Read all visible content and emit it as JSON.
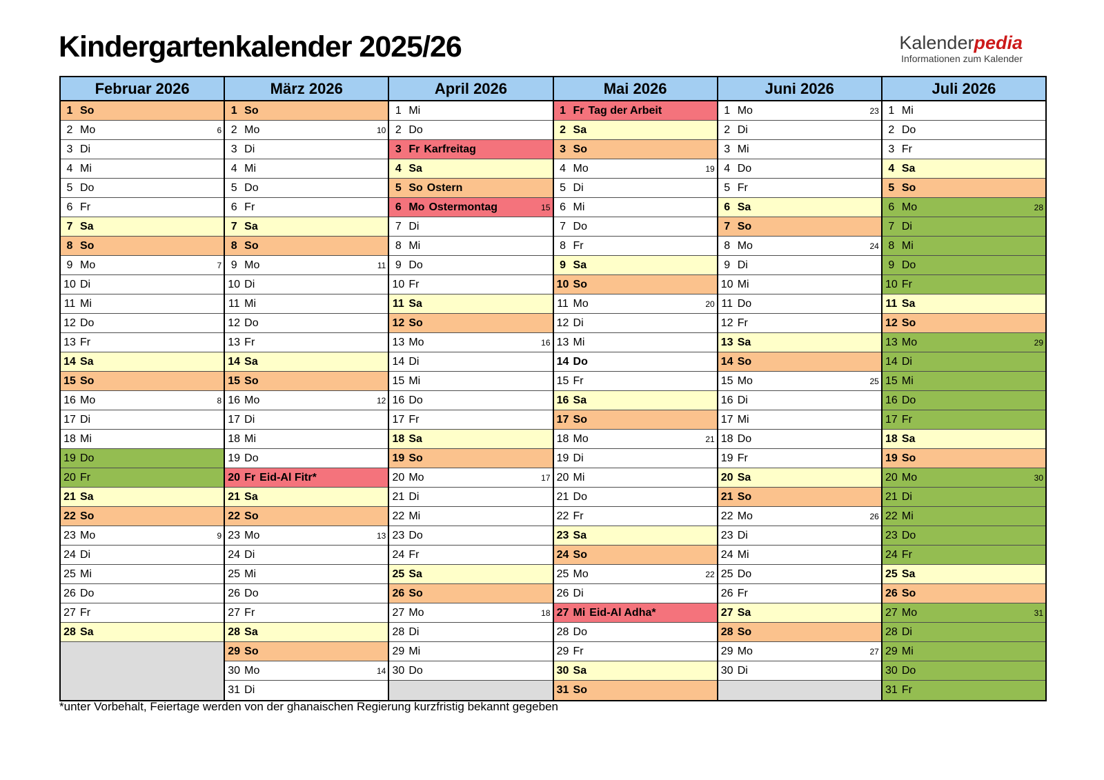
{
  "title": "Kindergartenkalender 2025/26",
  "logo": {
    "name_black": "Kalender",
    "name_red": "pedia",
    "tagline": "Informationen zum Kalender"
  },
  "footnote": "*unter Vorbehalt, Feiertage werden von der ghanaischen Regierung kurzfristig bekannt gegeben",
  "colors": {
    "header_blue": "#A3CEF2",
    "saturday_yellow": "#FFFFC9",
    "sunday_orange": "#FBC28D",
    "holiday_red": "#F4737C",
    "vacation_green": "#94BD51",
    "empty_gray": "#DCDCDC",
    "logo_red": "#CC1A1A"
  },
  "months": [
    {
      "name": "Februar 2026",
      "empty_rows": 3,
      "days": [
        {
          "d": 1,
          "w": "So",
          "t": "so"
        },
        {
          "d": 2,
          "w": "Mo",
          "kw": 6
        },
        {
          "d": 3,
          "w": "Di"
        },
        {
          "d": 4,
          "w": "Mi"
        },
        {
          "d": 5,
          "w": "Do"
        },
        {
          "d": 6,
          "w": "Fr"
        },
        {
          "d": 7,
          "w": "Sa",
          "t": "sa"
        },
        {
          "d": 8,
          "w": "So",
          "t": "so"
        },
        {
          "d": 9,
          "w": "Mo",
          "kw": 7
        },
        {
          "d": 10,
          "w": "Di"
        },
        {
          "d": 11,
          "w": "Mi"
        },
        {
          "d": 12,
          "w": "Do"
        },
        {
          "d": 13,
          "w": "Fr"
        },
        {
          "d": 14,
          "w": "Sa",
          "t": "sa"
        },
        {
          "d": 15,
          "w": "So",
          "t": "so"
        },
        {
          "d": 16,
          "w": "Mo",
          "kw": 8
        },
        {
          "d": 17,
          "w": "Di"
        },
        {
          "d": 18,
          "w": "Mi"
        },
        {
          "d": 19,
          "w": "Do",
          "t": "grn"
        },
        {
          "d": 20,
          "w": "Fr",
          "t": "grn"
        },
        {
          "d": 21,
          "w": "Sa",
          "t": "sa"
        },
        {
          "d": 22,
          "w": "So",
          "t": "so"
        },
        {
          "d": 23,
          "w": "Mo",
          "kw": 9
        },
        {
          "d": 24,
          "w": "Di"
        },
        {
          "d": 25,
          "w": "Mi"
        },
        {
          "d": 26,
          "w": "Do"
        },
        {
          "d": 27,
          "w": "Fr"
        },
        {
          "d": 28,
          "w": "Sa",
          "t": "sa"
        }
      ]
    },
    {
      "name": "März 2026",
      "empty_rows": 0,
      "days": [
        {
          "d": 1,
          "w": "So",
          "t": "so"
        },
        {
          "d": 2,
          "w": "Mo",
          "kw": 10
        },
        {
          "d": 3,
          "w": "Di"
        },
        {
          "d": 4,
          "w": "Mi"
        },
        {
          "d": 5,
          "w": "Do"
        },
        {
          "d": 6,
          "w": "Fr"
        },
        {
          "d": 7,
          "w": "Sa",
          "t": "sa"
        },
        {
          "d": 8,
          "w": "So",
          "t": "so"
        },
        {
          "d": 9,
          "w": "Mo",
          "kw": 11
        },
        {
          "d": 10,
          "w": "Di"
        },
        {
          "d": 11,
          "w": "Mi"
        },
        {
          "d": 12,
          "w": "Do"
        },
        {
          "d": 13,
          "w": "Fr"
        },
        {
          "d": 14,
          "w": "Sa",
          "t": "sa"
        },
        {
          "d": 15,
          "w": "So",
          "t": "so"
        },
        {
          "d": 16,
          "w": "Mo",
          "kw": 12
        },
        {
          "d": 17,
          "w": "Di"
        },
        {
          "d": 18,
          "w": "Mi"
        },
        {
          "d": 19,
          "w": "Do"
        },
        {
          "d": 20,
          "w": "Fr",
          "t": "hol",
          "l": "Eid-Al Fitr*"
        },
        {
          "d": 21,
          "w": "Sa",
          "t": "sa"
        },
        {
          "d": 22,
          "w": "So",
          "t": "so"
        },
        {
          "d": 23,
          "w": "Mo",
          "kw": 13
        },
        {
          "d": 24,
          "w": "Di"
        },
        {
          "d": 25,
          "w": "Mi"
        },
        {
          "d": 26,
          "w": "Do"
        },
        {
          "d": 27,
          "w": "Fr"
        },
        {
          "d": 28,
          "w": "Sa",
          "t": "sa"
        },
        {
          "d": 29,
          "w": "So",
          "t": "so"
        },
        {
          "d": 30,
          "w": "Mo",
          "kw": 14
        },
        {
          "d": 31,
          "w": "Di"
        }
      ]
    },
    {
      "name": "April 2026",
      "empty_rows": 1,
      "days": [
        {
          "d": 1,
          "w": "Mi"
        },
        {
          "d": 2,
          "w": "Do"
        },
        {
          "d": 3,
          "w": "Fr",
          "t": "hol",
          "l": "Karfreitag"
        },
        {
          "d": 4,
          "w": "Sa",
          "t": "sa"
        },
        {
          "d": 5,
          "w": "So",
          "t": "so",
          "l": "Ostern"
        },
        {
          "d": 6,
          "w": "Mo",
          "t": "hol",
          "l": "Ostermontag",
          "kw": 15
        },
        {
          "d": 7,
          "w": "Di"
        },
        {
          "d": 8,
          "w": "Mi"
        },
        {
          "d": 9,
          "w": "Do"
        },
        {
          "d": 10,
          "w": "Fr"
        },
        {
          "d": 11,
          "w": "Sa",
          "t": "sa"
        },
        {
          "d": 12,
          "w": "So",
          "t": "so"
        },
        {
          "d": 13,
          "w": "Mo",
          "kw": 16
        },
        {
          "d": 14,
          "w": "Di"
        },
        {
          "d": 15,
          "w": "Mi"
        },
        {
          "d": 16,
          "w": "Do"
        },
        {
          "d": 17,
          "w": "Fr"
        },
        {
          "d": 18,
          "w": "Sa",
          "t": "sa"
        },
        {
          "d": 19,
          "w": "So",
          "t": "so"
        },
        {
          "d": 20,
          "w": "Mo",
          "kw": 17
        },
        {
          "d": 21,
          "w": "Di"
        },
        {
          "d": 22,
          "w": "Mi"
        },
        {
          "d": 23,
          "w": "Do"
        },
        {
          "d": 24,
          "w": "Fr"
        },
        {
          "d": 25,
          "w": "Sa",
          "t": "sa"
        },
        {
          "d": 26,
          "w": "So",
          "t": "so"
        },
        {
          "d": 27,
          "w": "Mo",
          "kw": 18
        },
        {
          "d": 28,
          "w": "Di"
        },
        {
          "d": 29,
          "w": "Mi"
        },
        {
          "d": 30,
          "w": "Do"
        }
      ]
    },
    {
      "name": "Mai 2026",
      "empty_rows": 0,
      "days": [
        {
          "d": 1,
          "w": "Fr",
          "t": "hol",
          "l": "Tag der Arbeit"
        },
        {
          "d": 2,
          "w": "Sa",
          "t": "sa"
        },
        {
          "d": 3,
          "w": "So",
          "t": "so"
        },
        {
          "d": 4,
          "w": "Mo",
          "kw": 19
        },
        {
          "d": 5,
          "w": "Di"
        },
        {
          "d": 6,
          "w": "Mi"
        },
        {
          "d": 7,
          "w": "Do"
        },
        {
          "d": 8,
          "w": "Fr"
        },
        {
          "d": 9,
          "w": "Sa",
          "t": "sa"
        },
        {
          "d": 10,
          "w": "So",
          "t": "so"
        },
        {
          "d": 11,
          "w": "Mo",
          "kw": 20
        },
        {
          "d": 12,
          "w": "Di"
        },
        {
          "d": 13,
          "w": "Mi"
        },
        {
          "d": 14,
          "w": "Do",
          "b": true
        },
        {
          "d": 15,
          "w": "Fr"
        },
        {
          "d": 16,
          "w": "Sa",
          "t": "sa"
        },
        {
          "d": 17,
          "w": "So",
          "t": "so"
        },
        {
          "d": 18,
          "w": "Mo",
          "kw": 21
        },
        {
          "d": 19,
          "w": "Di"
        },
        {
          "d": 20,
          "w": "Mi"
        },
        {
          "d": 21,
          "w": "Do"
        },
        {
          "d": 22,
          "w": "Fr"
        },
        {
          "d": 23,
          "w": "Sa",
          "t": "sa"
        },
        {
          "d": 24,
          "w": "So",
          "t": "so"
        },
        {
          "d": 25,
          "w": "Mo",
          "kw": 22
        },
        {
          "d": 26,
          "w": "Di"
        },
        {
          "d": 27,
          "w": "Mi",
          "t": "hol",
          "l": "Eid-Al Adha*"
        },
        {
          "d": 28,
          "w": "Do"
        },
        {
          "d": 29,
          "w": "Fr"
        },
        {
          "d": 30,
          "w": "Sa",
          "t": "sa"
        },
        {
          "d": 31,
          "w": "So",
          "t": "so"
        }
      ]
    },
    {
      "name": "Juni 2026",
      "empty_rows": 1,
      "days": [
        {
          "d": 1,
          "w": "Mo",
          "kw": 23
        },
        {
          "d": 2,
          "w": "Di"
        },
        {
          "d": 3,
          "w": "Mi"
        },
        {
          "d": 4,
          "w": "Do"
        },
        {
          "d": 5,
          "w": "Fr"
        },
        {
          "d": 6,
          "w": "Sa",
          "t": "sa"
        },
        {
          "d": 7,
          "w": "So",
          "t": "so"
        },
        {
          "d": 8,
          "w": "Mo",
          "kw": 24
        },
        {
          "d": 9,
          "w": "Di"
        },
        {
          "d": 10,
          "w": "Mi"
        },
        {
          "d": 11,
          "w": "Do"
        },
        {
          "d": 12,
          "w": "Fr"
        },
        {
          "d": 13,
          "w": "Sa",
          "t": "sa"
        },
        {
          "d": 14,
          "w": "So",
          "t": "so"
        },
        {
          "d": 15,
          "w": "Mo",
          "kw": 25
        },
        {
          "d": 16,
          "w": "Di"
        },
        {
          "d": 17,
          "w": "Mi"
        },
        {
          "d": 18,
          "w": "Do"
        },
        {
          "d": 19,
          "w": "Fr"
        },
        {
          "d": 20,
          "w": "Sa",
          "t": "sa"
        },
        {
          "d": 21,
          "w": "So",
          "t": "so"
        },
        {
          "d": 22,
          "w": "Mo",
          "kw": 26
        },
        {
          "d": 23,
          "w": "Di"
        },
        {
          "d": 24,
          "w": "Mi"
        },
        {
          "d": 25,
          "w": "Do"
        },
        {
          "d": 26,
          "w": "Fr"
        },
        {
          "d": 27,
          "w": "Sa",
          "t": "sa"
        },
        {
          "d": 28,
          "w": "So",
          "t": "so"
        },
        {
          "d": 29,
          "w": "Mo",
          "kw": 27
        },
        {
          "d": 30,
          "w": "Di"
        }
      ]
    },
    {
      "name": "Juli 2026",
      "empty_rows": 0,
      "days": [
        {
          "d": 1,
          "w": "Mi"
        },
        {
          "d": 2,
          "w": "Do"
        },
        {
          "d": 3,
          "w": "Fr"
        },
        {
          "d": 4,
          "w": "Sa",
          "t": "sa"
        },
        {
          "d": 5,
          "w": "So",
          "t": "so"
        },
        {
          "d": 6,
          "w": "Mo",
          "t": "grn",
          "kw": 28
        },
        {
          "d": 7,
          "w": "Di",
          "t": "grn"
        },
        {
          "d": 8,
          "w": "Mi",
          "t": "grn"
        },
        {
          "d": 9,
          "w": "Do",
          "t": "grn"
        },
        {
          "d": 10,
          "w": "Fr",
          "t": "grn"
        },
        {
          "d": 11,
          "w": "Sa",
          "t": "sa"
        },
        {
          "d": 12,
          "w": "So",
          "t": "so"
        },
        {
          "d": 13,
          "w": "Mo",
          "t": "grn",
          "kw": 29
        },
        {
          "d": 14,
          "w": "Di",
          "t": "grn"
        },
        {
          "d": 15,
          "w": "Mi",
          "t": "grn"
        },
        {
          "d": 16,
          "w": "Do",
          "t": "grn"
        },
        {
          "d": 17,
          "w": "Fr",
          "t": "grn"
        },
        {
          "d": 18,
          "w": "Sa",
          "t": "sa"
        },
        {
          "d": 19,
          "w": "So",
          "t": "so"
        },
        {
          "d": 20,
          "w": "Mo",
          "t": "grn",
          "kw": 30
        },
        {
          "d": 21,
          "w": "Di",
          "t": "grn"
        },
        {
          "d": 22,
          "w": "Mi",
          "t": "grn"
        },
        {
          "d": 23,
          "w": "Do",
          "t": "grn"
        },
        {
          "d": 24,
          "w": "Fr",
          "t": "grn"
        },
        {
          "d": 25,
          "w": "Sa",
          "t": "sa"
        },
        {
          "d": 26,
          "w": "So",
          "t": "so"
        },
        {
          "d": 27,
          "w": "Mo",
          "t": "grn",
          "kw": 31
        },
        {
          "d": 28,
          "w": "Di",
          "t": "grn"
        },
        {
          "d": 29,
          "w": "Mi",
          "t": "grn"
        },
        {
          "d": 30,
          "w": "Do",
          "t": "grn"
        },
        {
          "d": 31,
          "w": "Fr",
          "t": "grn"
        }
      ]
    }
  ]
}
